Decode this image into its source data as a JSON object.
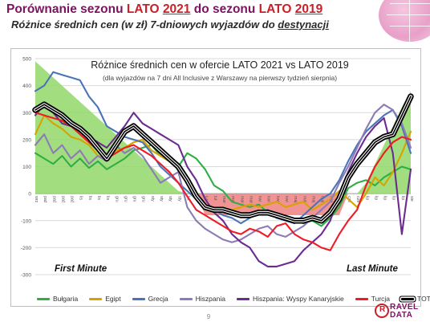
{
  "slide": {
    "title_parts": [
      "Porównanie sezonu ",
      "LATO",
      " ",
      "2021",
      " do sezonu ",
      "LATO",
      " ",
      "2019"
    ],
    "subtitle_main": "Różnice średnich cen (w zł) 7-dniowych wyjazdów do ",
    "subtitle_underlined": "destynacji",
    "page_number": "9"
  },
  "logo": {
    "mark": "R",
    "line1": "RAVEL",
    "line2": "DATA"
  },
  "chart_data": {
    "type": "line",
    "title": "Różnice średnich cen w ofercie LATO 2021 vs LATO 2019",
    "subtitle": "(dla wyjazdów na 7 dni All Inclusive z Warszawy na pierwszy tydzień sierpnia)",
    "ylim": [
      -300,
      500
    ],
    "yticks": [
      -300,
      -200,
      -100,
      0,
      100,
      200,
      300,
      400,
      500
    ],
    "grid": true,
    "legend_position": "bottom",
    "annotations": [
      "First Minute",
      "Last Minute"
    ],
    "categories": [
      "wrz",
      "paź",
      "paź",
      "paź",
      "paź",
      "lis",
      "lis",
      "lis",
      "lis",
      "gru",
      "gru",
      "gru",
      "gru",
      "sty",
      "sty",
      "sty",
      "sty",
      "lut",
      "lut",
      "lut",
      "lut",
      "mar",
      "mar",
      "mar",
      "mar",
      "kwi",
      "kwi",
      "kwi",
      "kwi",
      "maj",
      "maj",
      "maj",
      "maj",
      "cze",
      "cze",
      "cze",
      "cze",
      "lip",
      "lip",
      "lip",
      "lip",
      "lip",
      "sie"
    ],
    "background_shapes": [
      {
        "name": "First Minute zone",
        "color": "#92d86a",
        "values": [
          490,
          460,
          430,
          400,
          370,
          340,
          310,
          280,
          250,
          220,
          190,
          160,
          130,
          100,
          70,
          40,
          10,
          0,
          0,
          0,
          0,
          0,
          0,
          0,
          0,
          0,
          0,
          0,
          0,
          0,
          0,
          0,
          0,
          0,
          0,
          0,
          0,
          0,
          0,
          0,
          0,
          0,
          0
        ]
      },
      {
        "name": "Mid-season zone",
        "color": "#f08080",
        "values": [
          0,
          0,
          0,
          0,
          0,
          0,
          0,
          0,
          0,
          0,
          0,
          0,
          0,
          0,
          0,
          0,
          0,
          0,
          0,
          -80,
          -80,
          -80,
          -80,
          -80,
          -80,
          -80,
          -80,
          -80,
          -80,
          -80,
          -80,
          -80,
          -80,
          -80,
          -80,
          0,
          0,
          0,
          0,
          0,
          0,
          0,
          0
        ]
      },
      {
        "name": "Last Minute zone",
        "color": "#92d86a",
        "values": [
          0,
          0,
          0,
          0,
          0,
          0,
          0,
          0,
          0,
          0,
          0,
          0,
          0,
          0,
          0,
          0,
          0,
          0,
          0,
          0,
          0,
          0,
          0,
          0,
          0,
          0,
          0,
          0,
          0,
          0,
          0,
          0,
          0,
          0,
          0,
          0,
          0,
          40,
          110,
          180,
          250,
          320,
          380
        ]
      }
    ],
    "series": [
      {
        "name": "Bułgaria",
        "color": "#2fae44",
        "values": [
          150,
          130,
          110,
          140,
          100,
          130,
          95,
          120,
          90,
          110,
          130,
          160,
          170,
          180,
          140,
          120,
          100,
          150,
          130,
          90,
          30,
          10,
          -30,
          -40,
          -50,
          -40,
          -70,
          -90,
          -80,
          -100,
          -110,
          -100,
          -120,
          -90,
          -50,
          20,
          40,
          50,
          30,
          60,
          80,
          100,
          90
        ]
      },
      {
        "name": "Egipt",
        "color": "#d6a400",
        "values": [
          220,
          290,
          260,
          240,
          210,
          200,
          180,
          140,
          130,
          160,
          170,
          190,
          200,
          160,
          140,
          120,
          90,
          40,
          -10,
          -40,
          -60,
          -70,
          -60,
          -50,
          -40,
          -50,
          -40,
          -30,
          -50,
          -40,
          -30,
          -60,
          -40,
          -20,
          10,
          -20,
          -50,
          0,
          60,
          30,
          80,
          150,
          230
        ]
      },
      {
        "name": "Grecja",
        "color": "#4a74b8",
        "values": [
          380,
          400,
          450,
          440,
          430,
          420,
          360,
          320,
          250,
          230,
          210,
          200,
          190,
          150,
          100,
          70,
          40,
          10,
          -20,
          -40,
          -60,
          -80,
          -90,
          -110,
          -90,
          -70,
          -60,
          -90,
          -100,
          -110,
          -80,
          -50,
          -20,
          0,
          50,
          120,
          180,
          230,
          260,
          290,
          310,
          250,
          150
        ]
      },
      {
        "name": "Hiszpania",
        "color": "#8c7bb5",
        "values": [
          180,
          220,
          150,
          180,
          130,
          160,
          110,
          140,
          120,
          180,
          150,
          170,
          140,
          90,
          40,
          60,
          80,
          -50,
          -100,
          -130,
          -150,
          -170,
          -180,
          -170,
          -150,
          -130,
          -120,
          -150,
          -160,
          -140,
          -120,
          -90,
          -60,
          -30,
          40,
          100,
          170,
          240,
          300,
          330,
          310,
          260,
          170
        ]
      },
      {
        "name": "Hiszpania: Wyspy Kanaryjskie",
        "color": "#6a2c91",
        "values": [
          290,
          330,
          300,
          260,
          250,
          230,
          210,
          190,
          170,
          210,
          250,
          300,
          260,
          240,
          220,
          200,
          180,
          100,
          50,
          -20,
          -70,
          -100,
          -150,
          -180,
          -200,
          -250,
          -270,
          -270,
          -260,
          -250,
          -210,
          -180,
          -150,
          -100,
          0,
          80,
          150,
          210,
          250,
          280,
          150,
          -150,
          90
        ]
      },
      {
        "name": "Turcja",
        "color": "#ee1c25",
        "values": [
          300,
          290,
          280,
          270,
          250,
          220,
          190,
          160,
          130,
          150,
          170,
          180,
          160,
          140,
          110,
          80,
          40,
          -10,
          -60,
          -80,
          -100,
          -120,
          -140,
          -150,
          -130,
          -140,
          -160,
          -120,
          -110,
          -150,
          -170,
          -180,
          -200,
          -210,
          -150,
          -100,
          -60,
          30,
          100,
          150,
          190,
          210,
          200
        ]
      },
      {
        "name": "TOTAL",
        "color": "#000000",
        "values": [
          310,
          330,
          310,
          290,
          260,
          240,
          210,
          170,
          130,
          180,
          230,
          250,
          220,
          190,
          160,
          130,
          100,
          50,
          -10,
          -50,
          -60,
          -60,
          -70,
          -80,
          -80,
          -70,
          -70,
          -80,
          -90,
          -100,
          -100,
          -90,
          -100,
          -70,
          -20,
          60,
          110,
          150,
          190,
          210,
          220,
          290,
          360
        ]
      }
    ]
  }
}
